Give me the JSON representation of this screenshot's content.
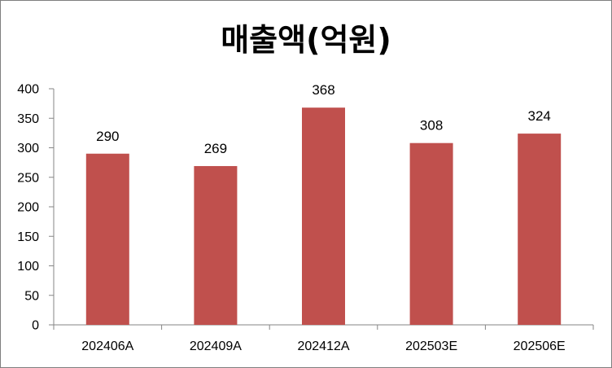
{
  "chart_data": {
    "type": "bar",
    "title": "매출액(억원)",
    "categories": [
      "202406A",
      "202409A",
      "202412A",
      "202503E",
      "202506E"
    ],
    "values": [
      290,
      269,
      368,
      308,
      324
    ],
    "ylim": [
      0,
      400
    ],
    "yticks": [
      0,
      50,
      100,
      150,
      200,
      250,
      300,
      350,
      400
    ],
    "ytick_labels": [
      "0",
      "50",
      "100",
      "150",
      "200",
      "250",
      "300",
      "350",
      "400"
    ],
    "data_labels": [
      "290",
      "269",
      "368",
      "308",
      "324"
    ],
    "bar_color": "#c0504d",
    "axis_color": "#868686",
    "grid": false,
    "legend": "none"
  }
}
